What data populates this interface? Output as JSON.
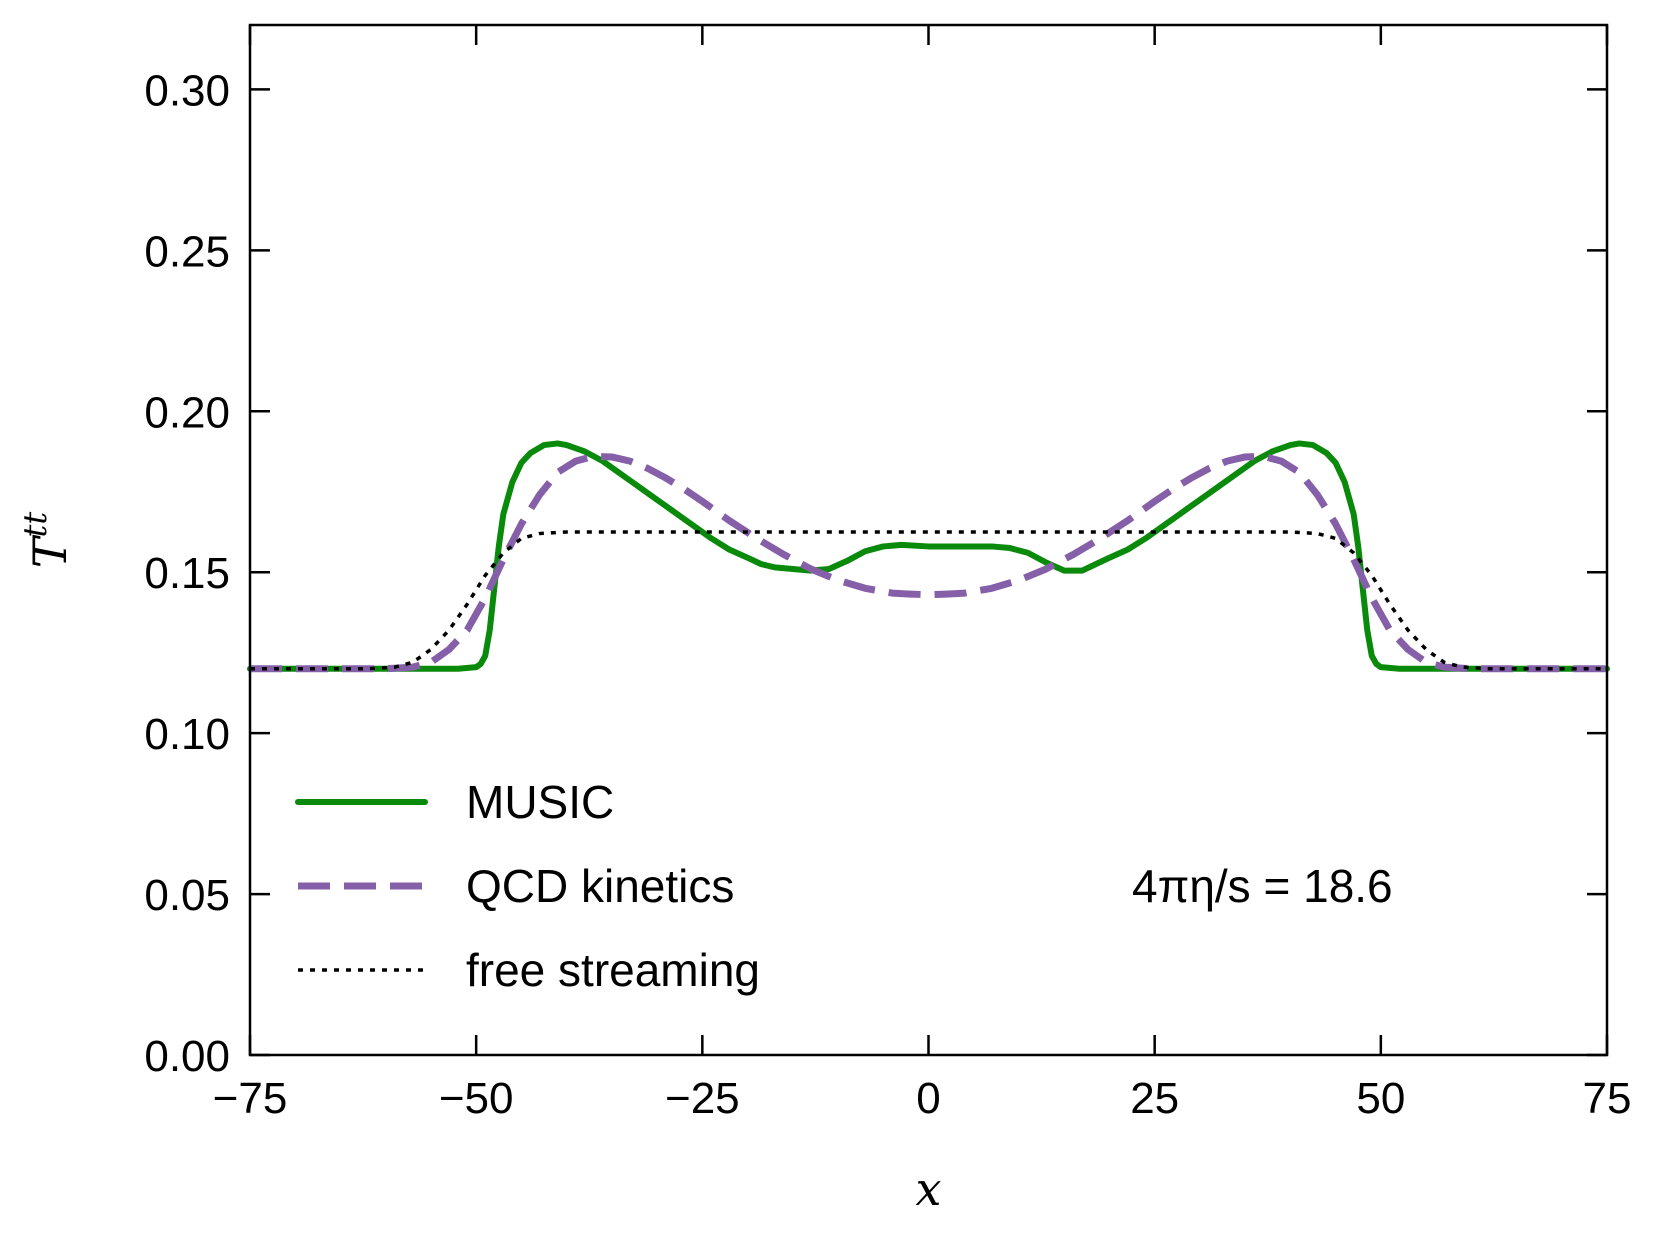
{
  "chart_data": {
    "type": "line",
    "title": "",
    "xlabel": "x",
    "ylabel_main": "T",
    "ylabel_sup": "tt",
    "xlim": [
      -75,
      75
    ],
    "ylim": [
      0.0,
      0.32
    ],
    "xticks": [
      -75,
      -50,
      -25,
      0,
      25,
      50,
      75
    ],
    "xtick_labels": [
      "−75",
      "−50",
      "−25",
      "0",
      "25",
      "50",
      "75"
    ],
    "yticks": [
      0.0,
      0.05,
      0.1,
      0.15,
      0.2,
      0.25,
      0.3
    ],
    "ytick_labels": [
      "0.00",
      "0.05",
      "0.10",
      "0.15",
      "0.20",
      "0.25",
      "0.30"
    ],
    "grid": false,
    "legend_position": "lower-left",
    "annotation": "4πη/s = 18.6",
    "series": [
      {
        "name": "MUSIC",
        "color": "#0a8a0a",
        "style": "solid",
        "x": [
          -75,
          -60,
          -52,
          -50,
          -49.5,
          -49,
          -48.5,
          -48,
          -47.5,
          -47,
          -46,
          -45,
          -44,
          -42.5,
          -41,
          -40,
          -38,
          -36,
          -34,
          -32,
          -30,
          -28,
          -26,
          -24,
          -22,
          -20,
          -18.5,
          -17,
          -15,
          -13,
          -11,
          -9,
          -7,
          -5,
          -3,
          0,
          3,
          5,
          7,
          9,
          11,
          13,
          15,
          17,
          18.5,
          20,
          22,
          24,
          26,
          28,
          30,
          32,
          34,
          36,
          38,
          40,
          41,
          42.5,
          44,
          45,
          46,
          47,
          47.5,
          48,
          48.5,
          49,
          49.5,
          50,
          52,
          60,
          75
        ],
        "y": [
          0.12,
          0.12,
          0.12,
          0.1205,
          0.1215,
          0.124,
          0.132,
          0.145,
          0.158,
          0.168,
          0.178,
          0.184,
          0.187,
          0.1895,
          0.19,
          0.1895,
          0.1875,
          0.1845,
          0.1805,
          0.1765,
          0.1725,
          0.1685,
          0.1645,
          0.1605,
          0.157,
          0.1545,
          0.1525,
          0.1515,
          0.151,
          0.1505,
          0.151,
          0.1535,
          0.1565,
          0.158,
          0.1585,
          0.158,
          0.158,
          0.158,
          0.158,
          0.1575,
          0.156,
          0.153,
          0.1505,
          0.1505,
          0.1525,
          0.1545,
          0.157,
          0.1605,
          0.1645,
          0.1685,
          0.1725,
          0.1765,
          0.1805,
          0.1845,
          0.1875,
          0.1895,
          0.19,
          0.1895,
          0.187,
          0.184,
          0.178,
          0.168,
          0.158,
          0.145,
          0.132,
          0.124,
          0.1215,
          0.1205,
          0.12,
          0.12,
          0.12
        ]
      },
      {
        "name": "QCD kinetics",
        "color": "#8560a8",
        "style": "dashed",
        "x": [
          -75,
          -60,
          -57,
          -55,
          -53,
          -51,
          -49,
          -47,
          -45,
          -43,
          -41,
          -39,
          -37,
          -35,
          -33,
          -31,
          -29,
          -27,
          -25,
          -22,
          -19,
          -16,
          -13,
          -10,
          -7,
          -4,
          -2,
          0,
          2,
          4,
          7,
          10,
          13,
          16,
          19,
          22,
          25,
          27,
          29,
          31,
          33,
          35,
          37,
          39,
          41,
          43,
          45,
          47,
          49,
          51,
          53,
          55,
          57,
          60,
          75
        ],
        "y": [
          0.12,
          0.12,
          0.1205,
          0.122,
          0.126,
          0.132,
          0.142,
          0.154,
          0.165,
          0.174,
          0.181,
          0.1845,
          0.186,
          0.1858,
          0.1845,
          0.1822,
          0.1792,
          0.1758,
          0.172,
          0.166,
          0.1605,
          0.1555,
          0.151,
          0.1475,
          0.145,
          0.1435,
          0.1432,
          0.143,
          0.1432,
          0.1435,
          0.145,
          0.1475,
          0.151,
          0.1555,
          0.1605,
          0.166,
          0.172,
          0.1758,
          0.1792,
          0.1822,
          0.1845,
          0.1858,
          0.186,
          0.1845,
          0.181,
          0.174,
          0.165,
          0.154,
          0.142,
          0.132,
          0.126,
          0.122,
          0.1205,
          0.12,
          0.12
        ]
      },
      {
        "name": "free streaming",
        "color": "#000000",
        "style": "dotted",
        "x": [
          -75,
          -62,
          -59,
          -57,
          -55,
          -53,
          -51,
          -49,
          -47,
          -45,
          -43,
          -40,
          -30,
          -20,
          -10,
          0,
          10,
          20,
          30,
          40,
          43,
          45,
          47,
          49,
          51,
          53,
          55,
          57,
          59,
          62,
          75
        ],
        "y": [
          0.12,
          0.12,
          0.1205,
          0.122,
          0.126,
          0.132,
          0.14,
          0.149,
          0.156,
          0.1605,
          0.162,
          0.1625,
          0.1625,
          0.1625,
          0.1625,
          0.1625,
          0.1625,
          0.1625,
          0.1625,
          0.1625,
          0.162,
          0.1605,
          0.156,
          0.149,
          0.14,
          0.132,
          0.126,
          0.122,
          0.1205,
          0.12,
          0.12
        ]
      }
    ]
  }
}
